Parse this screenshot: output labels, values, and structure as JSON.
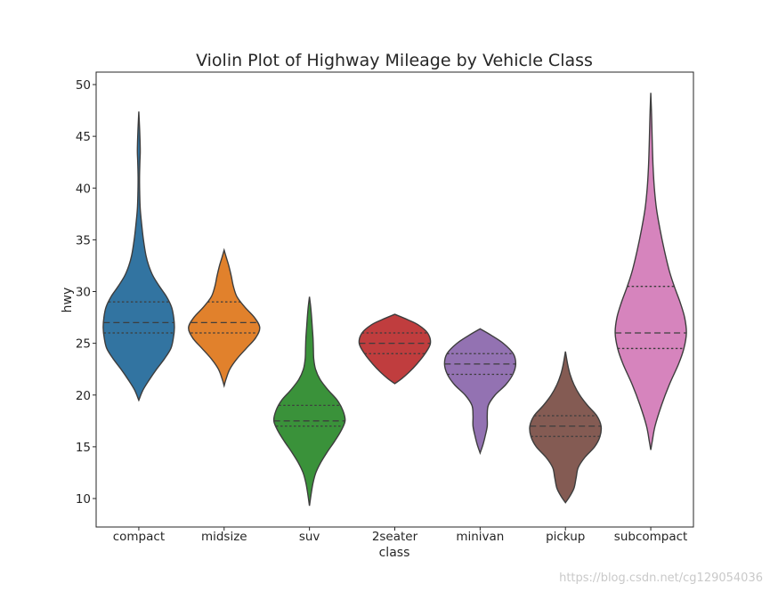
{
  "chart_data": {
    "type": "violin",
    "title": "Violin Plot of Highway Mileage by Vehicle Class",
    "xlabel": "class",
    "ylabel": "hwy",
    "categories": [
      "compact",
      "midsize",
      "suv",
      "2seater",
      "minivan",
      "pickup",
      "subcompact"
    ],
    "ylim": [
      8,
      51
    ],
    "yticks": [
      10,
      15,
      20,
      25,
      30,
      35,
      40,
      45,
      50
    ],
    "grid": false,
    "inner": "quartile",
    "colors": [
      "#3274a1",
      "#e1812c",
      "#3a923a",
      "#c03d3e",
      "#9372b2",
      "#845b53",
      "#d684bd"
    ],
    "series": [
      {
        "category": "compact",
        "min": 19.5,
        "max": 47.4,
        "q1": 26,
        "median": 27,
        "q3": 29,
        "density": [
          [
            19.5,
            0.0
          ],
          [
            20.5,
            0.12
          ],
          [
            21.5,
            0.3
          ],
          [
            22.5,
            0.5
          ],
          [
            23.5,
            0.72
          ],
          [
            24.5,
            0.9
          ],
          [
            25.5,
            0.97
          ],
          [
            26.5,
            1.0
          ],
          [
            27.5,
            0.98
          ],
          [
            28.5,
            0.92
          ],
          [
            29.5,
            0.78
          ],
          [
            30.5,
            0.58
          ],
          [
            31.5,
            0.4
          ],
          [
            32.5,
            0.28
          ],
          [
            33.5,
            0.2
          ],
          [
            35,
            0.13
          ],
          [
            36.5,
            0.08
          ],
          [
            38,
            0.04
          ],
          [
            39.5,
            0.025
          ],
          [
            41,
            0.02
          ],
          [
            42.5,
            0.03
          ],
          [
            43.5,
            0.04
          ],
          [
            44.5,
            0.035
          ],
          [
            45.5,
            0.025
          ],
          [
            46.5,
            0.012
          ],
          [
            47.4,
            0.0
          ]
        ]
      },
      {
        "category": "midsize",
        "min": 20.9,
        "max": 34.0,
        "q1": 26,
        "median": 27,
        "q3": 29,
        "density": [
          [
            20.9,
            0.0
          ],
          [
            21.5,
            0.05
          ],
          [
            22.5,
            0.16
          ],
          [
            23.5,
            0.36
          ],
          [
            24.5,
            0.62
          ],
          [
            25.5,
            0.88
          ],
          [
            26.5,
            1.0
          ],
          [
            27.5,
            0.85
          ],
          [
            28.5,
            0.58
          ],
          [
            29.5,
            0.36
          ],
          [
            30.5,
            0.26
          ],
          [
            31.5,
            0.2
          ],
          [
            32.5,
            0.13
          ],
          [
            33.3,
            0.06
          ],
          [
            34.0,
            0.0
          ]
        ]
      },
      {
        "category": "suv",
        "min": 9.3,
        "max": 29.5,
        "q1": 17,
        "median": 17.5,
        "q3": 19,
        "density": [
          [
            9.3,
            0.0
          ],
          [
            10.5,
            0.05
          ],
          [
            11.5,
            0.1
          ],
          [
            12.5,
            0.18
          ],
          [
            13.5,
            0.32
          ],
          [
            14.5,
            0.5
          ],
          [
            15.5,
            0.7
          ],
          [
            16.5,
            0.88
          ],
          [
            17.5,
            1.0
          ],
          [
            18.5,
            0.94
          ],
          [
            19.5,
            0.78
          ],
          [
            20.5,
            0.52
          ],
          [
            21.5,
            0.3
          ],
          [
            22.5,
            0.17
          ],
          [
            23.5,
            0.12
          ],
          [
            24.5,
            0.11
          ],
          [
            25.5,
            0.1
          ],
          [
            26.5,
            0.08
          ],
          [
            27.5,
            0.06
          ],
          [
            28.5,
            0.035
          ],
          [
            29.5,
            0.0
          ]
        ]
      },
      {
        "category": "2seater",
        "min": 21.1,
        "max": 27.8,
        "q1": 24,
        "median": 25,
        "q3": 26,
        "density": [
          [
            21.1,
            0.0
          ],
          [
            21.6,
            0.2
          ],
          [
            22.2,
            0.4
          ],
          [
            23,
            0.62
          ],
          [
            24,
            0.85
          ],
          [
            25,
            1.0
          ],
          [
            26,
            0.92
          ],
          [
            26.8,
            0.65
          ],
          [
            27.3,
            0.35
          ],
          [
            27.8,
            0.0
          ]
        ]
      },
      {
        "category": "minivan",
        "min": 14.4,
        "max": 26.4,
        "q1": 22,
        "median": 23,
        "q3": 24,
        "density": [
          [
            14.4,
            0.0
          ],
          [
            15.2,
            0.08
          ],
          [
            16,
            0.14
          ],
          [
            17,
            0.2
          ],
          [
            18,
            0.2
          ],
          [
            19,
            0.23
          ],
          [
            20,
            0.42
          ],
          [
            21,
            0.72
          ],
          [
            22,
            0.92
          ],
          [
            23,
            1.0
          ],
          [
            24,
            0.93
          ],
          [
            25,
            0.65
          ],
          [
            25.8,
            0.3
          ],
          [
            26.4,
            0.0
          ]
        ]
      },
      {
        "category": "pickup",
        "min": 9.6,
        "max": 24.2,
        "q1": 16,
        "median": 17,
        "q3": 18,
        "density": [
          [
            9.6,
            0.0
          ],
          [
            10.2,
            0.12
          ],
          [
            11,
            0.24
          ],
          [
            12,
            0.3
          ],
          [
            13,
            0.36
          ],
          [
            14,
            0.55
          ],
          [
            15,
            0.82
          ],
          [
            16,
            0.97
          ],
          [
            17,
            1.0
          ],
          [
            18,
            0.88
          ],
          [
            19,
            0.62
          ],
          [
            20,
            0.4
          ],
          [
            21,
            0.24
          ],
          [
            22,
            0.13
          ],
          [
            23,
            0.06
          ],
          [
            24.2,
            0.0
          ]
        ]
      },
      {
        "category": "subcompact",
        "min": 14.7,
        "max": 49.2,
        "q1": 24.5,
        "median": 26,
        "q3": 30.5,
        "density": [
          [
            14.7,
            0.0
          ],
          [
            15.5,
            0.04
          ],
          [
            17,
            0.12
          ],
          [
            19,
            0.3
          ],
          [
            21,
            0.52
          ],
          [
            23,
            0.78
          ],
          [
            24.5,
            0.93
          ],
          [
            26,
            1.0
          ],
          [
            27.5,
            0.95
          ],
          [
            29,
            0.82
          ],
          [
            30.5,
            0.66
          ],
          [
            32,
            0.52
          ],
          [
            34,
            0.38
          ],
          [
            36,
            0.26
          ],
          [
            38,
            0.16
          ],
          [
            40,
            0.1
          ],
          [
            42,
            0.065
          ],
          [
            44,
            0.045
          ],
          [
            46,
            0.03
          ],
          [
            47.5,
            0.018
          ],
          [
            49.2,
            0.0
          ]
        ]
      }
    ]
  },
  "watermark": "https://blog.csdn.net/cg129054036"
}
